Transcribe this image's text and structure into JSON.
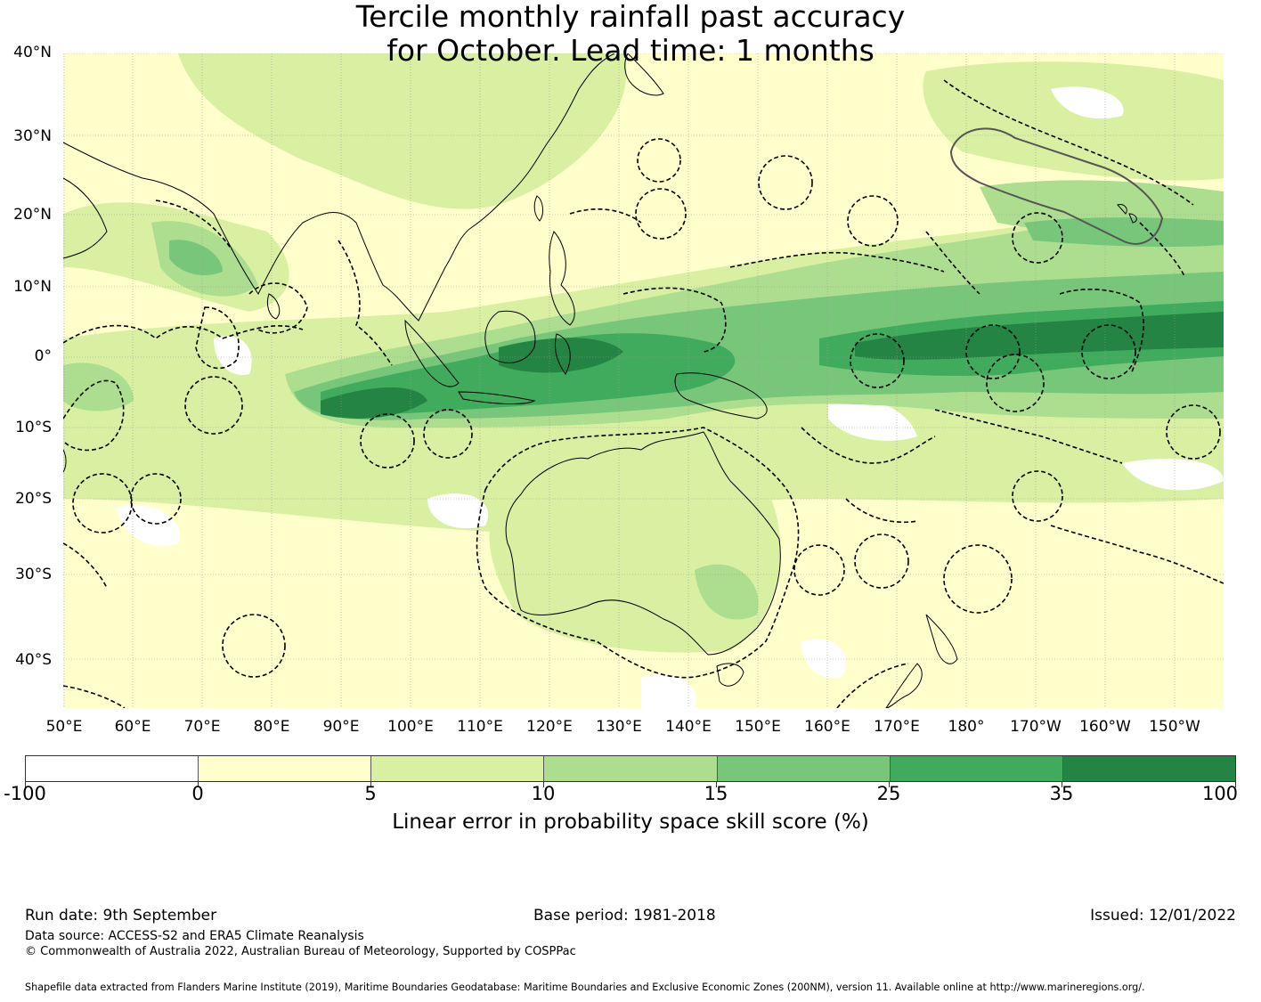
{
  "title": {
    "line1": "Tercile monthly rainfall past accuracy",
    "line2": "for October. Lead time: 1 months"
  },
  "map": {
    "type": "skill-score map",
    "region": "Indian Ocean, Maritime Continent, Australia, West/Central Pacific",
    "lat_labels": [
      "40°N",
      "30°N",
      "20°N",
      "10°N",
      "0°",
      "10°S",
      "20°S",
      "30°S",
      "40°S"
    ],
    "lon_labels": [
      "50°E",
      "60°E",
      "70°E",
      "80°E",
      "90°E",
      "100°E",
      "110°E",
      "120°E",
      "130°E",
      "140°E",
      "150°E",
      "160°E",
      "170°E",
      "180°",
      "170°W",
      "160°W",
      "150°W"
    ],
    "features": [
      "coastlines",
      "EEZ boundaries (dashed)",
      "highlighted EEZ boundary (grey, north-east)",
      "graticule"
    ]
  },
  "legend": {
    "ticks": [
      "-100",
      "0",
      "5",
      "10",
      "15",
      "25",
      "35",
      "100"
    ],
    "colors": [
      "#ffffff",
      "#ffffcc",
      "#d9f0a3",
      "#addd8e",
      "#78c679",
      "#41ab5d",
      "#238443"
    ],
    "label": "Linear error in probability space skill score (%)"
  },
  "footer": {
    "run_date": "Run date: 9th September",
    "base_period": "Base period: 1981-2018",
    "issued": "Issued: 12/01/2022",
    "data_source": "Data source: ACCESS-S2 and ERA5 Climate Reanalysis",
    "copyright": "© Commonwealth of Australia 2022, Australian Bureau of Meteorology, Supported by COSPPac",
    "shapefile": "Shapefile data extracted from Flanders Marine Institute (2019), Maritime Boundaries Geodatabase: Maritime Boundaries and Exclusive Economic Zones (200NM), version 11. Available online at http://www.marineregions.org/."
  }
}
